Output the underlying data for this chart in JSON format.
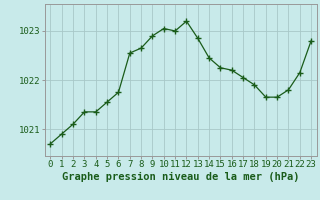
{
  "x": [
    0,
    1,
    2,
    3,
    4,
    5,
    6,
    7,
    8,
    9,
    10,
    11,
    12,
    13,
    14,
    15,
    16,
    17,
    18,
    19,
    20,
    21,
    22,
    23
  ],
  "y": [
    1020.7,
    1020.9,
    1021.1,
    1021.35,
    1021.35,
    1021.55,
    1021.75,
    1022.55,
    1022.65,
    1022.9,
    1023.05,
    1023.0,
    1023.2,
    1022.85,
    1022.45,
    1022.25,
    1022.2,
    1022.05,
    1021.9,
    1021.65,
    1021.65,
    1021.8,
    1022.15,
    1022.8
  ],
  "line_color": "#1a5c1a",
  "marker": "+",
  "marker_size": 4,
  "bg_color": "#c8eaea",
  "grid_color": "#a8c8c8",
  "border_color": "#999999",
  "xlabel": "Graphe pression niveau de la mer (hPa)",
  "xlabel_fontsize": 7.5,
  "tick_fontsize": 6.5,
  "ylabel_ticks": [
    1021,
    1022,
    1023
  ],
  "ylim": [
    1020.45,
    1023.55
  ],
  "xlim": [
    -0.5,
    23.5
  ],
  "label_color": "#1a5c1a"
}
